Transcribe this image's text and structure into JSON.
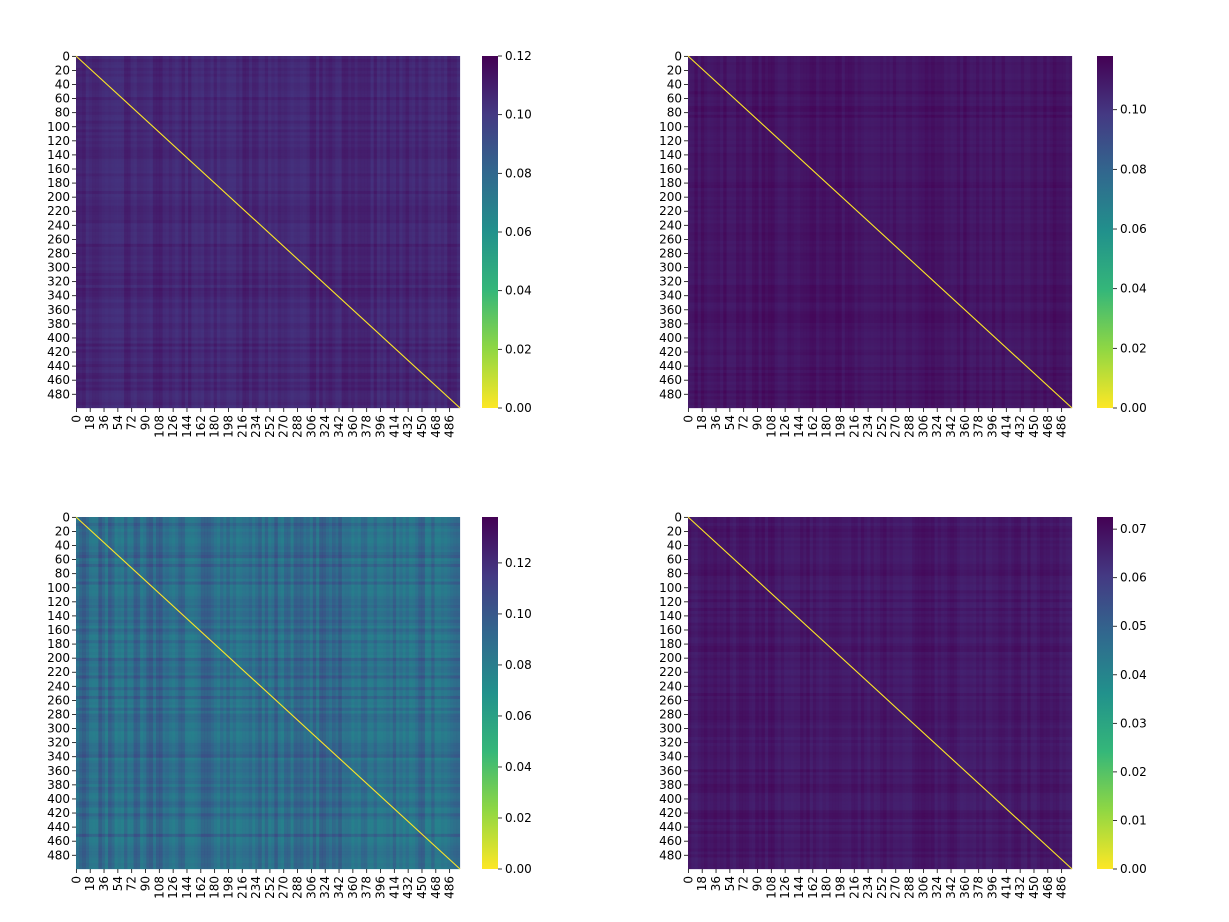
{
  "colormap": {
    "name": "viridis_r",
    "stops": [
      "#fde725",
      "#90d743",
      "#35b779",
      "#21918c",
      "#31688e",
      "#443983",
      "#440154"
    ]
  },
  "chart_data": [
    {
      "type": "heatmap",
      "panel": "top-left",
      "rows": 500,
      "cols": 500,
      "diagonal_value": 0.0,
      "off_diagonal_typical": 0.107,
      "off_diagonal_range": [
        0.1,
        0.116
      ],
      "vmin": 0.0,
      "vmax": 0.12,
      "ytick_labels": [
        "0",
        "20",
        "40",
        "60",
        "80",
        "100",
        "120",
        "140",
        "160",
        "180",
        "200",
        "220",
        "240",
        "260",
        "280",
        "300",
        "320",
        "340",
        "360",
        "380",
        "400",
        "420",
        "440",
        "460",
        "480"
      ],
      "xtick_labels": [
        "0",
        "18",
        "36",
        "54",
        "72",
        "90",
        "108",
        "126",
        "144",
        "162",
        "180",
        "198",
        "216",
        "234",
        "252",
        "270",
        "288",
        "306",
        "324",
        "342",
        "360",
        "378",
        "396",
        "414",
        "432",
        "450",
        "468",
        "486"
      ],
      "colorbar_ticks": [
        {
          "value": 0.0,
          "label": "0.00"
        },
        {
          "value": 0.02,
          "label": "0.02"
        },
        {
          "value": 0.04,
          "label": "0.04"
        },
        {
          "value": 0.06,
          "label": "0.06"
        },
        {
          "value": 0.08,
          "label": "0.08"
        },
        {
          "value": 0.1,
          "label": "0.10"
        },
        {
          "value": 0.12,
          "label": "0.12"
        }
      ]
    },
    {
      "type": "heatmap",
      "panel": "top-right",
      "rows": 500,
      "cols": 500,
      "diagonal_value": 0.0,
      "off_diagonal_typical": 0.112,
      "off_diagonal_range": [
        0.106,
        0.118
      ],
      "vmin": 0.0,
      "vmax": 0.118,
      "ytick_labels": [
        "0",
        "20",
        "40",
        "60",
        "80",
        "100",
        "120",
        "140",
        "160",
        "180",
        "200",
        "220",
        "240",
        "260",
        "280",
        "300",
        "320",
        "340",
        "360",
        "380",
        "400",
        "420",
        "440",
        "460",
        "480"
      ],
      "xtick_labels": [
        "0",
        "18",
        "36",
        "54",
        "72",
        "90",
        "108",
        "126",
        "144",
        "162",
        "180",
        "198",
        "216",
        "234",
        "252",
        "270",
        "288",
        "306",
        "324",
        "342",
        "360",
        "378",
        "396",
        "414",
        "432",
        "450",
        "468",
        "486"
      ],
      "colorbar_ticks": [
        {
          "value": 0.0,
          "label": "0.00"
        },
        {
          "value": 0.02,
          "label": "0.02"
        },
        {
          "value": 0.04,
          "label": "0.04"
        },
        {
          "value": 0.06,
          "label": "0.06"
        },
        {
          "value": 0.08,
          "label": "0.08"
        },
        {
          "value": 0.1,
          "label": "0.10"
        }
      ]
    },
    {
      "type": "heatmap",
      "panel": "bottom-left",
      "rows": 500,
      "cols": 500,
      "diagonal_value": 0.0,
      "off_diagonal_typical": 0.083,
      "off_diagonal_range": [
        0.075,
        0.118
      ],
      "vmin": 0.0,
      "vmax": 0.138,
      "ytick_labels": [
        "0",
        "20",
        "40",
        "60",
        "80",
        "100",
        "120",
        "140",
        "160",
        "180",
        "200",
        "220",
        "240",
        "260",
        "280",
        "300",
        "320",
        "340",
        "360",
        "380",
        "400",
        "420",
        "440",
        "460",
        "480"
      ],
      "xtick_labels": [
        "0",
        "18",
        "36",
        "54",
        "72",
        "90",
        "108",
        "126",
        "144",
        "162",
        "180",
        "198",
        "216",
        "234",
        "252",
        "270",
        "288",
        "306",
        "324",
        "342",
        "360",
        "378",
        "396",
        "414",
        "432",
        "450",
        "468",
        "486"
      ],
      "colorbar_ticks": [
        {
          "value": 0.0,
          "label": "0.00"
        },
        {
          "value": 0.02,
          "label": "0.02"
        },
        {
          "value": 0.04,
          "label": "0.04"
        },
        {
          "value": 0.06,
          "label": "0.06"
        },
        {
          "value": 0.08,
          "label": "0.08"
        },
        {
          "value": 0.1,
          "label": "0.10"
        },
        {
          "value": 0.12,
          "label": "0.12"
        }
      ]
    },
    {
      "type": "heatmap",
      "panel": "bottom-right",
      "rows": 500,
      "cols": 500,
      "diagonal_value": 0.0,
      "off_diagonal_typical": 0.068,
      "off_diagonal_range": [
        0.064,
        0.072
      ],
      "vmin": 0.0,
      "vmax": 0.0725,
      "ytick_labels": [
        "0",
        "20",
        "40",
        "60",
        "80",
        "100",
        "120",
        "140",
        "160",
        "180",
        "200",
        "220",
        "240",
        "260",
        "280",
        "300",
        "320",
        "340",
        "360",
        "380",
        "400",
        "420",
        "440",
        "460",
        "480"
      ],
      "xtick_labels": [
        "0",
        "18",
        "36",
        "54",
        "72",
        "90",
        "108",
        "126",
        "144",
        "162",
        "180",
        "198",
        "216",
        "234",
        "252",
        "270",
        "288",
        "306",
        "324",
        "342",
        "360",
        "378",
        "396",
        "414",
        "432",
        "450",
        "468",
        "486"
      ],
      "colorbar_ticks": [
        {
          "value": 0.0,
          "label": "0.00"
        },
        {
          "value": 0.01,
          "label": "0.01"
        },
        {
          "value": 0.02,
          "label": "0.02"
        },
        {
          "value": 0.03,
          "label": "0.03"
        },
        {
          "value": 0.04,
          "label": "0.04"
        },
        {
          "value": 0.05,
          "label": "0.05"
        },
        {
          "value": 0.06,
          "label": "0.06"
        },
        {
          "value": 0.07,
          "label": "0.07"
        }
      ]
    }
  ]
}
